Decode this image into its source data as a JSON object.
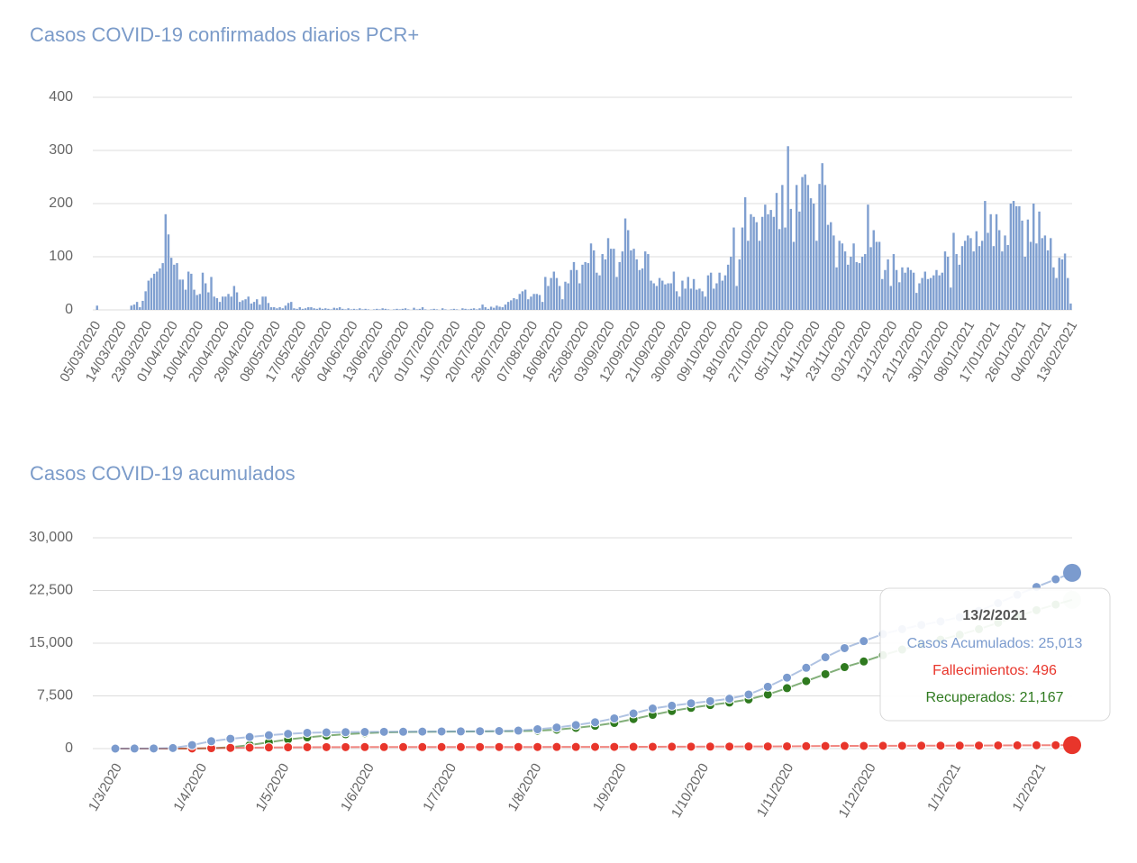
{
  "chart_data": [
    {
      "type": "bar",
      "title": "Casos COVID-19 confirmados diarios PCR+",
      "color": "#7f9fd0",
      "grid": true,
      "ylim": [
        0,
        400
      ],
      "yticks": [
        0,
        100,
        200,
        300,
        400
      ],
      "categories": [
        "05/03/2020",
        null,
        null,
        null,
        null,
        null,
        null,
        null,
        null,
        "14/03/2020",
        null,
        null,
        null,
        null,
        null,
        null,
        null,
        null,
        "23/03/2020",
        null,
        null,
        null,
        null,
        null,
        null,
        null,
        null,
        "01/04/2020",
        null,
        null,
        null,
        null,
        null,
        null,
        null,
        null,
        "10/04/2020",
        null,
        null,
        null,
        null,
        null,
        null,
        null,
        null,
        "20/04/2020",
        null,
        null,
        null,
        null,
        null,
        null,
        null,
        null,
        "29/04/2020",
        null,
        null,
        null,
        null,
        null,
        null,
        null,
        null,
        "08/05/2020",
        null,
        null,
        null,
        null,
        null,
        null,
        null,
        null,
        "17/05/2020",
        null,
        null,
        null,
        null,
        null,
        null,
        null,
        null,
        "26/05/2020",
        null,
        null,
        null,
        null,
        null,
        null,
        null,
        null,
        "04/06/2020",
        null,
        null,
        null,
        null,
        null,
        null,
        null,
        null,
        "13/06/2020",
        null,
        null,
        null,
        null,
        null,
        null,
        null,
        null,
        "22/06/2020",
        null,
        null,
        null,
        null,
        null,
        null,
        null,
        null,
        "01/07/2020",
        null,
        null,
        null,
        null,
        null,
        null,
        null,
        null,
        "10/07/2020",
        null,
        null,
        null,
        null,
        null,
        null,
        null,
        null,
        "20/07/2020",
        null,
        null,
        null,
        null,
        null,
        null,
        null,
        null,
        "29/07/2020",
        null,
        null,
        null,
        null,
        null,
        null,
        null,
        null,
        "07/08/2020",
        null,
        null,
        null,
        null,
        null,
        null,
        null,
        null,
        "16/08/2020",
        null,
        null,
        null,
        null,
        null,
        null,
        null,
        null,
        "25/08/2020",
        null,
        null,
        null,
        null,
        null,
        null,
        null,
        null,
        "03/09/2020",
        null,
        null,
        null,
        null,
        null,
        null,
        null,
        null,
        "12/09/2020",
        null,
        null,
        null,
        null,
        null,
        null,
        null,
        null,
        "21/09/2020",
        null,
        null,
        null,
        null,
        null,
        null,
        null,
        null,
        "30/09/2020",
        null,
        null,
        null,
        null,
        null,
        null,
        null,
        null,
        "09/10/2020",
        null,
        null,
        null,
        null,
        null,
        null,
        null,
        null,
        "18/10/2020",
        null,
        null,
        null,
        null,
        null,
        null,
        null,
        null,
        "27/10/2020",
        null,
        null,
        null,
        null,
        null,
        null,
        null,
        null,
        "05/11/2020",
        null,
        null,
        null,
        null,
        null,
        null,
        null,
        null,
        "14/11/2020",
        null,
        null,
        null,
        null,
        null,
        null,
        null,
        null,
        "23/11/2020",
        null,
        null,
        null,
        null,
        null,
        null,
        null,
        null,
        "03/12/2020",
        null,
        null,
        null,
        null,
        null,
        null,
        null,
        null,
        "12/12/2020",
        null,
        null,
        null,
        null,
        null,
        null,
        null,
        null,
        "21/12/2020",
        null,
        null,
        null,
        null,
        null,
        null,
        null,
        null,
        "30/12/2020",
        null,
        null,
        null,
        null,
        null,
        null,
        null,
        null,
        "08/01/2021",
        null,
        null,
        null,
        null,
        null,
        null,
        null,
        null,
        "17/01/2021",
        null,
        null,
        null,
        null,
        null,
        null,
        null,
        null,
        "26/01/2021",
        null,
        null,
        null,
        null,
        null,
        null,
        null,
        null,
        "04/02/2021",
        null,
        null,
        null,
        null,
        null,
        null,
        null,
        null,
        "13/02/2021"
      ],
      "values": [
        0,
        8,
        0,
        0,
        0,
        0,
        0,
        0,
        0,
        0,
        0,
        0,
        0,
        8,
        10,
        15,
        5,
        17,
        35,
        55,
        60,
        68,
        72,
        78,
        88,
        180,
        142,
        98,
        85,
        88,
        57,
        57,
        38,
        72,
        68,
        38,
        28,
        30,
        70,
        50,
        33,
        62,
        25,
        22,
        15,
        25,
        25,
        30,
        25,
        45,
        33,
        15,
        18,
        20,
        25,
        12,
        15,
        20,
        10,
        25,
        25,
        13,
        5,
        5,
        3,
        5,
        3,
        8,
        13,
        15,
        3,
        2,
        5,
        2,
        3,
        5,
        5,
        3,
        2,
        4,
        2,
        3,
        2,
        1,
        4,
        3,
        5,
        2,
        1,
        3,
        1,
        2,
        1,
        3,
        1,
        2,
        1,
        0,
        1,
        2,
        1,
        3,
        2,
        1,
        0,
        1,
        2,
        1,
        2,
        3,
        1,
        0,
        4,
        1,
        2,
        5,
        1,
        0,
        1,
        2,
        1,
        0,
        3,
        1,
        0,
        1,
        2,
        1,
        0,
        3,
        2,
        1,
        2,
        3,
        1,
        3,
        10,
        5,
        2,
        6,
        4,
        8,
        6,
        5,
        10,
        15,
        18,
        22,
        20,
        30,
        35,
        38,
        20,
        25,
        30,
        30,
        28,
        15,
        62,
        45,
        60,
        72,
        60,
        45,
        20,
        53,
        50,
        75,
        90,
        75,
        50,
        85,
        90,
        88,
        125,
        112,
        70,
        65,
        105,
        95,
        135,
        115,
        115,
        62,
        90,
        110,
        172,
        150,
        112,
        115,
        95,
        75,
        78,
        110,
        105,
        55,
        50,
        45,
        60,
        55,
        48,
        50,
        50,
        72,
        35,
        25,
        55,
        40,
        62,
        40,
        58,
        38,
        40,
        35,
        25,
        65,
        70,
        40,
        50,
        70,
        55,
        65,
        85,
        100,
        155,
        45,
        95,
        155,
        212,
        130,
        180,
        175,
        165,
        130,
        175,
        198,
        180,
        188,
        175,
        220,
        152,
        235,
        155,
        308,
        190,
        128,
        235,
        185,
        250,
        255,
        235,
        210,
        200,
        130,
        237,
        276,
        235,
        160,
        165,
        140,
        80,
        130,
        125,
        110,
        85,
        100,
        125,
        90,
        88,
        100,
        105,
        198,
        118,
        150,
        128,
        128,
        58,
        75,
        95,
        45,
        105,
        75,
        52,
        80,
        70,
        80,
        75,
        70,
        32,
        50,
        60,
        72,
        58,
        60,
        65,
        75,
        65,
        70,
        110,
        100,
        42,
        145,
        105,
        85,
        120,
        130,
        140,
        135,
        110,
        148,
        120,
        130,
        205,
        145,
        180,
        120,
        180,
        150,
        110,
        140,
        122,
        200,
        205,
        195,
        195,
        168,
        100,
        170,
        128,
        200,
        125,
        185,
        135,
        140,
        112,
        135,
        80,
        60,
        98,
        95,
        106,
        60,
        12
      ]
    },
    {
      "type": "line",
      "title": "Casos COVID-19 acumulados",
      "grid": true,
      "ylim": [
        0,
        30000
      ],
      "yticks": [
        0,
        {
          "value": 7500,
          "label": "7,500"
        },
        {
          "value": 15000,
          "label": "15,000"
        },
        {
          "value": 22500,
          "label": "22,500"
        },
        {
          "value": 30000,
          "label": "30,000"
        }
      ],
      "xlim": [
        "1/3/2020",
        "13/2/2021"
      ],
      "xticks": [
        "1/3/2020",
        "1/4/2020",
        "1/5/2020",
        "1/6/2020",
        "1/7/2020",
        "1/8/2020",
        "1/9/2020",
        "1/10/2020",
        "1/11/2020",
        "1/12/2020",
        "1/1/2021",
        "1/2/2021"
      ],
      "x": [
        "1/3/2020",
        "8/3/2020",
        "15/3/2020",
        "22/3/2020",
        "29/3/2020",
        "5/4/2020",
        "12/4/2020",
        "19/4/2020",
        "26/4/2020",
        "3/5/2020",
        "10/5/2020",
        "17/5/2020",
        "24/5/2020",
        "31/5/2020",
        "7/6/2020",
        "14/6/2020",
        "21/6/2020",
        "28/6/2020",
        "5/7/2020",
        "12/7/2020",
        "19/7/2020",
        "26/7/2020",
        "2/8/2020",
        "9/8/2020",
        "16/8/2020",
        "23/8/2020",
        "30/8/2020",
        "6/9/2020",
        "13/9/2020",
        "20/9/2020",
        "27/9/2020",
        "4/10/2020",
        "11/10/2020",
        "18/10/2020",
        "25/10/2020",
        "1/11/2020",
        "8/11/2020",
        "15/11/2020",
        "22/11/2020",
        "29/11/2020",
        "6/12/2020",
        "13/12/2020",
        "20/12/2020",
        "27/12/2020",
        "3/1/2021",
        "10/1/2021",
        "17/1/2021",
        "24/1/2021",
        "31/1/2021",
        "7/2/2021",
        "13/2/2021"
      ],
      "series": [
        {
          "name": "Casos Acumulados",
          "color": "#7b9bce",
          "values": [
            0,
            10,
            20,
            80,
            500,
            1050,
            1400,
            1650,
            1900,
            2100,
            2250,
            2300,
            2340,
            2370,
            2390,
            2400,
            2420,
            2440,
            2450,
            2470,
            2500,
            2560,
            2750,
            3000,
            3350,
            3750,
            4300,
            5000,
            5700,
            6100,
            6450,
            6750,
            7100,
            7700,
            8800,
            10100,
            11500,
            13000,
            14300,
            15300,
            16300,
            17000,
            17600,
            18100,
            18700,
            19600,
            20700,
            21900,
            23000,
            24100,
            25013
          ]
        },
        {
          "name": "Fallecimientos",
          "color": "#e8352b",
          "values": [
            0,
            0,
            0,
            2,
            20,
            60,
            100,
            130,
            160,
            180,
            200,
            210,
            215,
            218,
            220,
            222,
            223,
            224,
            225,
            226,
            227,
            228,
            230,
            233,
            236,
            240,
            245,
            252,
            260,
            268,
            275,
            282,
            290,
            298,
            310,
            325,
            345,
            365,
            380,
            390,
            400,
            408,
            415,
            420,
            428,
            438,
            450,
            462,
            475,
            487,
            496
          ]
        },
        {
          "name": "Recuperados",
          "color": "#2f7a1f",
          "values": [
            0,
            0,
            0,
            0,
            0,
            50,
            200,
            500,
            900,
            1300,
            1600,
            1850,
            2050,
            2200,
            2300,
            2350,
            2380,
            2400,
            2420,
            2440,
            2460,
            2480,
            2550,
            2700,
            2950,
            3250,
            3650,
            4200,
            4800,
            5350,
            5800,
            6200,
            6550,
            7000,
            7700,
            8600,
            9600,
            10600,
            11600,
            12400,
            13300,
            14100,
            14800,
            15500,
            16200,
            17000,
            17900,
            18800,
            19700,
            20500,
            21167
          ]
        }
      ],
      "tooltip": {
        "title": "13/2/2021",
        "lines": [
          "Casos Acumulados: 25,013",
          "Fallecimientos: 496",
          "Recuperados: 21,167"
        ]
      }
    }
  ]
}
